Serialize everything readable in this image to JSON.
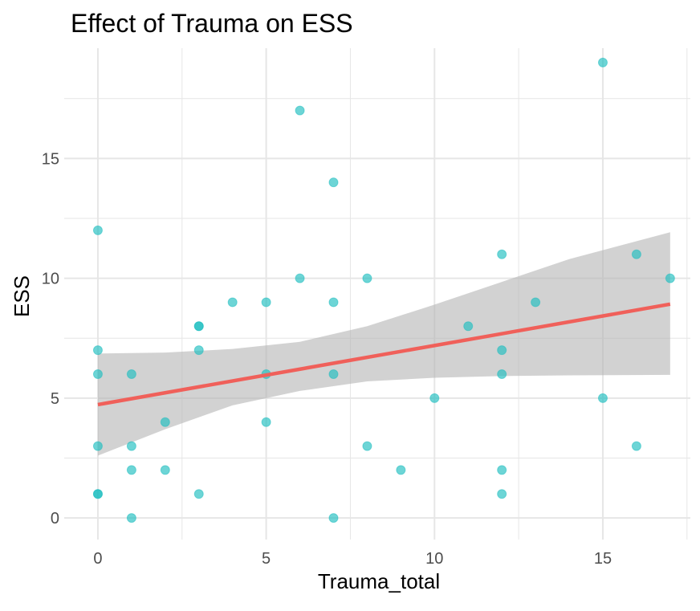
{
  "chart_data": {
    "type": "scatter",
    "title": "Effect of Trauma on ESS",
    "xlabel": "Trauma_total",
    "ylabel": "ESS",
    "xlim": [
      -1,
      17.6
    ],
    "ylim": [
      -0.9,
      19.6
    ],
    "x_ticks": [
      0,
      5,
      10,
      15
    ],
    "y_ticks": [
      0,
      5,
      10,
      15
    ],
    "x_minor_ticks": [
      2.5,
      7.5,
      12.5,
      17.5
    ],
    "y_minor_ticks": [
      2.5,
      7.5,
      12.5,
      17.5
    ],
    "grid": true,
    "legend": "none",
    "colors": {
      "points": "#1ebec0",
      "fit_line": "#f0605a",
      "confidence_band": "#b4b4b4",
      "grid": "#e6e6e6"
    },
    "series": [
      {
        "kind": "points",
        "x": [
          0,
          0,
          0,
          0,
          0,
          0,
          1,
          1,
          1,
          1,
          2,
          2,
          3,
          3,
          3,
          3,
          4,
          5,
          5,
          5,
          6,
          6,
          7,
          7,
          7,
          7,
          8,
          8,
          9,
          10,
          11,
          12,
          12,
          12,
          12,
          12,
          13,
          15,
          15,
          16,
          16,
          17
        ],
        "y": [
          12,
          7,
          6,
          3,
          1,
          1,
          6,
          3,
          2,
          0,
          4,
          2,
          8,
          8,
          7,
          1,
          9,
          9,
          6,
          4,
          17,
          10,
          14,
          9,
          6,
          0,
          10,
          3,
          2,
          5,
          8,
          11,
          7,
          6,
          2,
          1,
          9,
          19,
          5,
          11,
          3,
          10
        ]
      },
      {
        "kind": "linear_fit",
        "x": [
          0,
          17
        ],
        "y": [
          4.73,
          8.92
        ]
      },
      {
        "kind": "confidence_band",
        "x": [
          0,
          2,
          4,
          6,
          8,
          10,
          12,
          14,
          17
        ],
        "lower": [
          2.6,
          3.7,
          4.7,
          5.3,
          5.7,
          5.85,
          5.92,
          5.95,
          5.97
        ],
        "upper": [
          6.86,
          6.9,
          7.05,
          7.35,
          8.0,
          8.9,
          9.85,
          10.8,
          11.92
        ]
      }
    ]
  }
}
